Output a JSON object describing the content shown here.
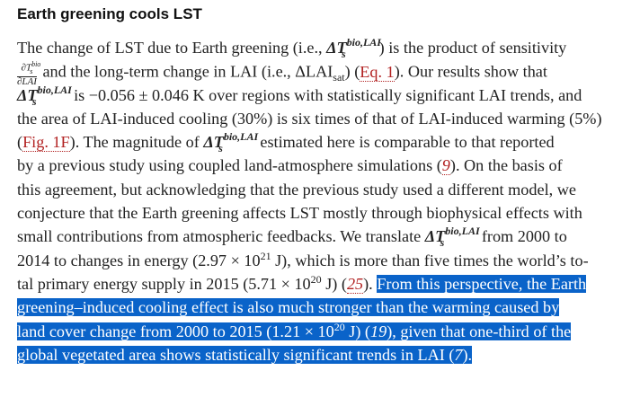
{
  "heading": "Earth greening cools LST",
  "math": {
    "delta_ts": "ΔT",
    "sup_bio_lai": "bio,LAI",
    "sub_s": "s",
    "frac_num": "∂T",
    "frac_num_sup": "bio",
    "frac_num_sub": "s",
    "frac_den": "∂LAI",
    "sub_sat": "sat",
    "sup_21": "21",
    "sup_20": "20"
  },
  "lines": {
    "l1a": "The change of LST due to Earth greening (i.e., ",
    "l1b": ") is the product of sensitivity",
    "l2a": " and the long-term change in LAI (i.e., ΔLAI",
    "l2b": ") (",
    "l2ref": "Eq. 1",
    "l2c": "). Our results show that",
    "l3": " is −0.056 ± 0.046 K over regions with statistically significant LAI trends, and",
    "l4": "the area of LAI-induced cooling (30%) is six times of that of LAI-induced warming (5%)",
    "l5a": "(",
    "l5ref": "Fig. 1F",
    "l5b": "). The magnitude of ",
    "l5c": " estimated here is comparable to that reported",
    "l6a": "by a previous study using coupled land-atmosphere simulations (",
    "l6ref": "9",
    "l6b": "). On the basis of",
    "l7": "this agreement, but acknowledging that the previous study used a different model, we",
    "l8": "conjecture that the Earth greening affects LST mostly through biophysical effects with",
    "l9a": "small contributions from atmospheric feedbacks. We translate ",
    "l9b": " from 2000 to",
    "l10a": "2014 to changes in energy (2.97 × 10",
    "l10b": " J), which is more than five times the world’s to-",
    "l11a": "tal primary energy supply in 2015 (5.71 × 10",
    "l11b": " J) (",
    "l11ref": "25",
    "l11c": "). ",
    "l11hl": "From this perspective, the Earth",
    "l12": "greening–induced cooling effect is also much stronger than the warming caused by",
    "l13a": "land cover change from 2000 to 2015 (1.21 × 10",
    "l13b": " J) (",
    "l13ref": "19",
    "l13c": "), given that one-third of the",
    "l14a": "global vegetated area shows statistically significant trends in LAI (",
    "l14ref": "7",
    "l14b": ")."
  }
}
